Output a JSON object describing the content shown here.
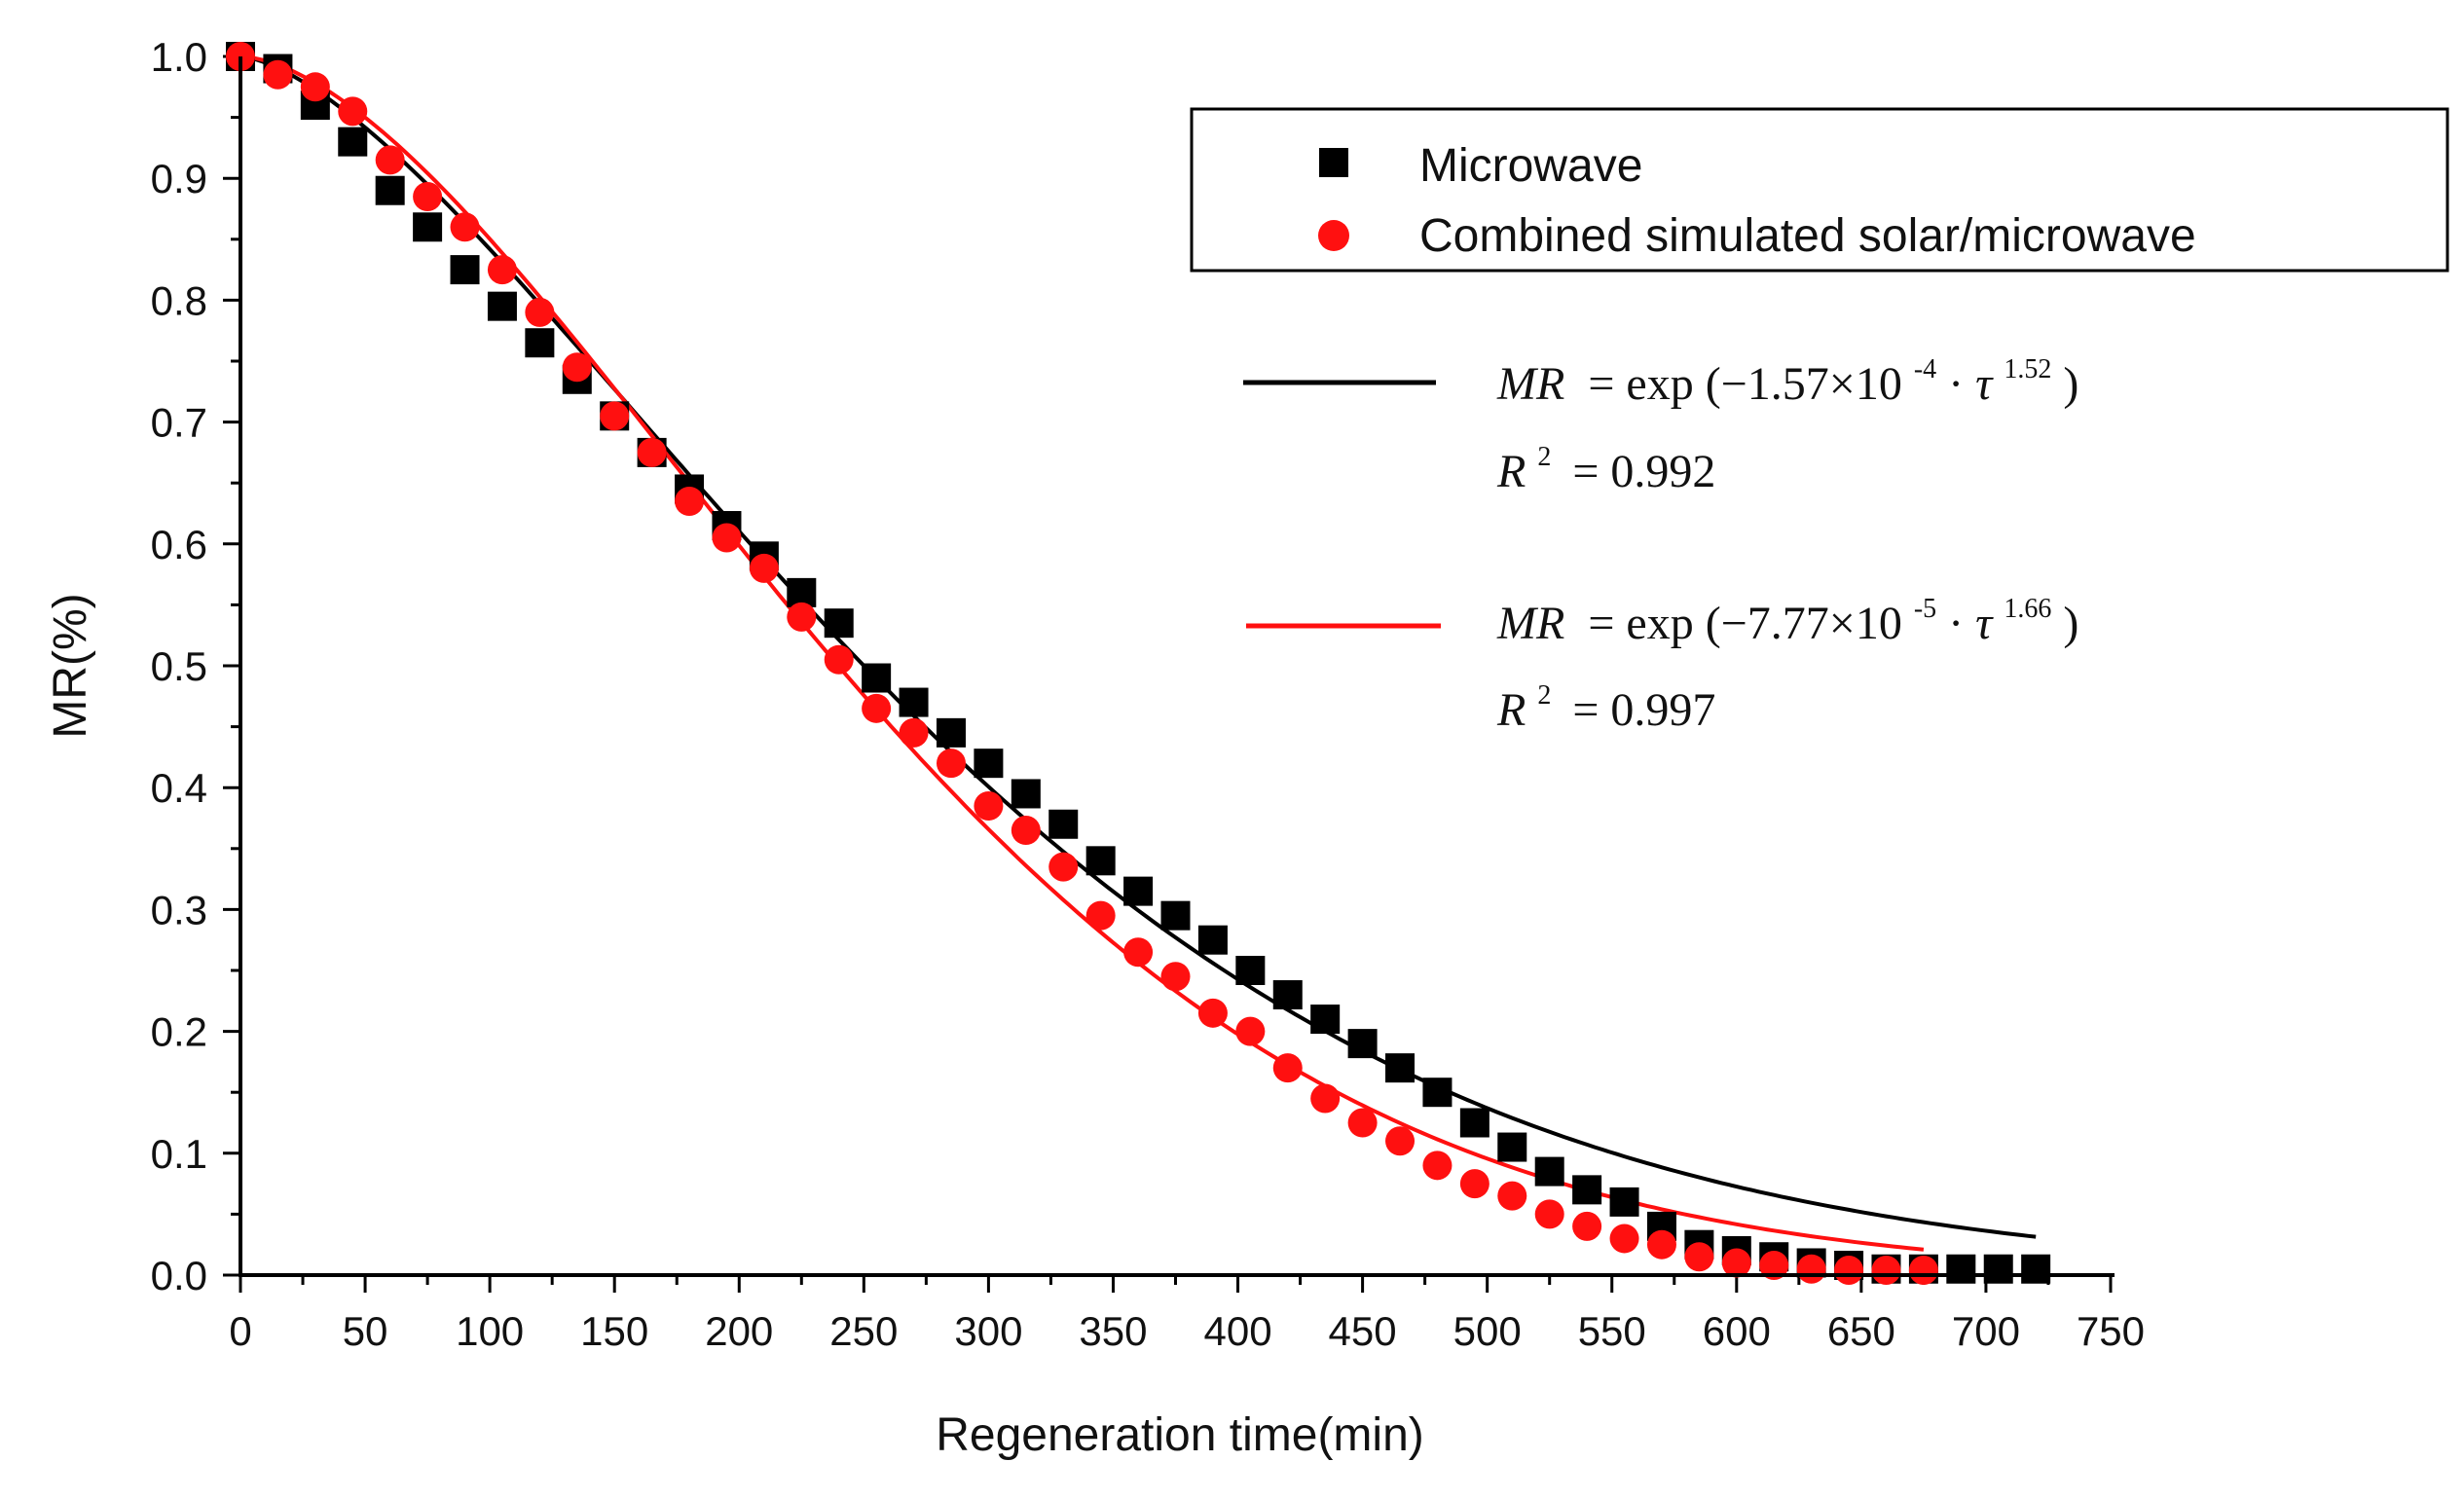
{
  "chart_data": {
    "type": "scatter",
    "title": "",
    "xlabel": "Regeneration time(min)",
    "ylabel": "MR(%)",
    "xlim": [
      0,
      750
    ],
    "ylim": [
      0.0,
      1.0
    ],
    "x_ticks": [
      "0",
      "50",
      "100",
      "150",
      "200",
      "250",
      "300",
      "350",
      "400",
      "450",
      "500",
      "550",
      "600",
      "650",
      "700",
      "750"
    ],
    "y_ticks": [
      "0.0",
      "0.1",
      "0.2",
      "0.3",
      "0.4",
      "0.5",
      "0.6",
      "0.7",
      "0.8",
      "0.9",
      "1.0"
    ],
    "legend_position": "top-right",
    "series": [
      {
        "name": "Microwave",
        "marker": "square",
        "color": "#000000",
        "x": [
          0,
          15,
          30,
          45,
          60,
          75,
          90,
          105,
          120,
          135,
          150,
          165,
          180,
          195,
          210,
          225,
          240,
          255,
          270,
          285,
          300,
          315,
          330,
          345,
          360,
          375,
          390,
          405,
          420,
          435,
          450,
          465,
          480,
          495,
          510,
          525,
          540,
          555,
          570,
          585,
          600,
          615,
          630,
          645,
          660,
          675,
          690,
          705,
          720
        ],
        "y": [
          1.0,
          0.99,
          0.96,
          0.93,
          0.89,
          0.86,
          0.825,
          0.795,
          0.765,
          0.735,
          0.705,
          0.675,
          0.645,
          0.615,
          0.59,
          0.56,
          0.535,
          0.49,
          0.47,
          0.445,
          0.42,
          0.395,
          0.37,
          0.34,
          0.315,
          0.295,
          0.275,
          0.25,
          0.23,
          0.21,
          0.19,
          0.17,
          0.15,
          0.125,
          0.105,
          0.085,
          0.07,
          0.06,
          0.04,
          0.025,
          0.02,
          0.015,
          0.01,
          0.008,
          0.005,
          0.005,
          0.005,
          0.005,
          0.005
        ]
      },
      {
        "name": "Combined simulated solar/microwave",
        "marker": "circle",
        "color": "#ff1010",
        "x": [
          0,
          15,
          30,
          45,
          60,
          75,
          90,
          105,
          120,
          135,
          150,
          165,
          180,
          195,
          210,
          225,
          240,
          255,
          270,
          285,
          300,
          315,
          330,
          345,
          360,
          375,
          390,
          405,
          420,
          435,
          450,
          465,
          480,
          495,
          510,
          525,
          540,
          555,
          570,
          585,
          600,
          615,
          630,
          645,
          660,
          675
        ],
        "y": [
          1.0,
          0.985,
          0.975,
          0.955,
          0.915,
          0.885,
          0.86,
          0.825,
          0.79,
          0.745,
          0.705,
          0.675,
          0.635,
          0.605,
          0.58,
          0.54,
          0.505,
          0.465,
          0.445,
          0.42,
          0.385,
          0.365,
          0.335,
          0.295,
          0.265,
          0.245,
          0.215,
          0.2,
          0.17,
          0.145,
          0.125,
          0.11,
          0.09,
          0.075,
          0.065,
          0.05,
          0.04,
          0.03,
          0.025,
          0.015,
          0.01,
          0.008,
          0.005,
          0.004,
          0.004,
          0.004
        ]
      }
    ],
    "fits": [
      {
        "series": "Microwave",
        "color": "#000000",
        "k": 0.000157,
        "n": 1.52,
        "x_max": 720,
        "equation": {
          "lhs": "MR",
          "eq": "= exp",
          "open": "(−1.57×10",
          "exp_power": "-4",
          "dot": " · ",
          "tau": "τ",
          "n": "1.52",
          "close": ")"
        },
        "r2_label": "R",
        "r2_sup": "2",
        "r2_value": "= 0.992"
      },
      {
        "series": "Combined simulated solar/microwave",
        "color": "#ff1010",
        "k": 7.77e-05,
        "n": 1.66,
        "x_max": 675,
        "equation": {
          "lhs": "MR",
          "eq": "= exp",
          "open": "(−7.77×10",
          "exp_power": "-5",
          "dot": " · ",
          "tau": "τ",
          "n": "1.66",
          "close": ")"
        },
        "r2_label": "R",
        "r2_sup": "2",
        "r2_value": "= 0.997"
      }
    ]
  }
}
